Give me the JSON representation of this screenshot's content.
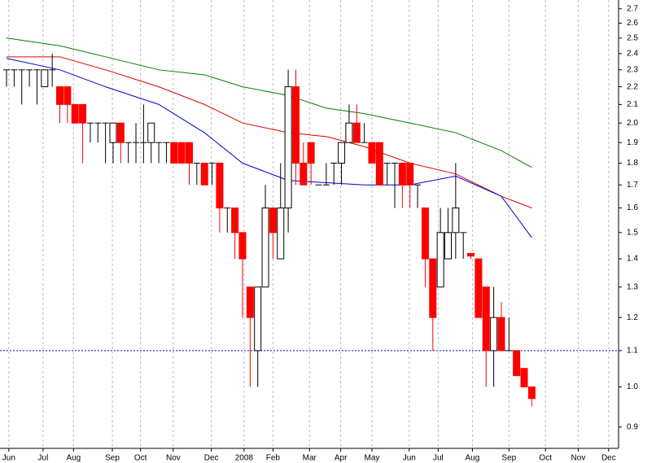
{
  "chart_data": {
    "type": "candlestick",
    "log_scale": true,
    "xlim": [
      -0.86,
      80.4
    ],
    "ylim": [
      0.851,
      2.763
    ],
    "xticks": [
      {
        "value": 0.3,
        "label": "Jun"
      },
      {
        "value": 4.8,
        "label": "Jul"
      },
      {
        "value": 8.8,
        "label": "Aug"
      },
      {
        "value": 13.9,
        "label": "Sep"
      },
      {
        "value": 17.6,
        "label": "Oct"
      },
      {
        "value": 21.9,
        "label": "Nov"
      },
      {
        "value": 26.9,
        "label": "Dec"
      },
      {
        "value": 31.2,
        "label": "2008"
      },
      {
        "value": 35,
        "label": "Feb"
      },
      {
        "value": 39.8,
        "label": "Mar"
      },
      {
        "value": 43.9,
        "label": "Apr"
      },
      {
        "value": 48,
        "label": "May"
      },
      {
        "value": 52.9,
        "label": "Jun"
      },
      {
        "value": 56.7,
        "label": "Jul"
      },
      {
        "value": 61.2,
        "label": "Aug"
      },
      {
        "value": 66,
        "label": "Sep"
      },
      {
        "value": 70.8,
        "label": "Oct"
      },
      {
        "value": 75.1,
        "label": "Nov"
      },
      {
        "value": 79.1,
        "label": "Dec"
      }
    ],
    "yticks": [
      0.9,
      {
        "value": 1,
        "label": "1.0"
      },
      1.1,
      1.2,
      1.3,
      1.4,
      1.5,
      1.6,
      1.7,
      1.8,
      1.9,
      {
        "value": 2,
        "label": "2.0"
      },
      2.1,
      2.2,
      2.3,
      2.4,
      2.5,
      2.6,
      2.7
    ],
    "x_grid": true,
    "up_color": "#ffffff",
    "down_color": "#ff0000",
    "reference_line": {
      "value": 1.1,
      "color": "#0000cc"
    },
    "candles": {
      "x": [
        0,
        1,
        2,
        3,
        4,
        5,
        6,
        7,
        8,
        9,
        10,
        11,
        12,
        13,
        14,
        15,
        16,
        17,
        18,
        19,
        20,
        21,
        22,
        23,
        24,
        25,
        26,
        27,
        28,
        29,
        30,
        31,
        32,
        33,
        34,
        35,
        36,
        37,
        38,
        39,
        40,
        41,
        42,
        43,
        44,
        45,
        46,
        47,
        48,
        49,
        50,
        51,
        52,
        53,
        54,
        55,
        56,
        57,
        58,
        59,
        60,
        61,
        62,
        63,
        64,
        65,
        66,
        67,
        68,
        69
      ],
      "open": [
        2.3,
        2.3,
        2.3,
        2.3,
        2.3,
        2.2,
        2.3,
        2.2,
        2.2,
        2.1,
        2.1,
        2.0,
        2.0,
        2.0,
        1.9,
        2.0,
        1.9,
        1.9,
        1.9,
        1.9,
        1.9,
        1.9,
        1.9,
        1.9,
        1.9,
        1.8,
        1.8,
        1.8,
        1.8,
        1.6,
        1.6,
        1.5,
        1.3,
        1.1,
        1.3,
        1.6,
        1.4,
        1.6,
        2.2,
        1.8,
        1.9,
        1.7,
        1.7,
        1.8,
        1.8,
        1.9,
        2.0,
        1.9,
        1.9,
        1.9,
        1.8,
        1.8,
        1.8,
        1.8,
        1.7,
        1.6,
        1.4,
        1.3,
        1.4,
        1.5,
        1.5,
        1.42,
        1.4,
        1.3,
        1.1,
        1.2,
        1.1,
        1.1,
        1.05,
        1.0
      ],
      "high": [
        2.3,
        2.3,
        2.3,
        2.3,
        2.3,
        2.3,
        2.4,
        2.2,
        2.2,
        2.1,
        2.1,
        2.0,
        2.0,
        2.0,
        2.0,
        2.0,
        1.9,
        2.0,
        2.1,
        2.0,
        1.9,
        1.9,
        1.9,
        1.9,
        1.9,
        1.8,
        1.8,
        1.8,
        1.8,
        1.6,
        1.6,
        1.5,
        1.3,
        1.3,
        1.7,
        1.6,
        1.8,
        2.3,
        2.3,
        1.9,
        1.9,
        1.7,
        1.8,
        1.8,
        1.9,
        2.1,
        2.1,
        2.0,
        1.9,
        1.9,
        1.8,
        1.8,
        1.8,
        1.8,
        1.7,
        1.6,
        1.4,
        1.6,
        1.6,
        1.8,
        1.5,
        1.42,
        1.4,
        1.3,
        1.3,
        1.25,
        1.2,
        1.1,
        1.05,
        1.0
      ],
      "low": [
        2.2,
        2.2,
        2.1,
        2.2,
        2.1,
        2.2,
        2.2,
        2.0,
        2.0,
        2.0,
        1.8,
        1.9,
        1.9,
        1.8,
        1.8,
        1.8,
        1.8,
        1.8,
        1.8,
        1.8,
        1.8,
        1.8,
        1.8,
        1.8,
        1.7,
        1.7,
        1.7,
        1.7,
        1.5,
        1.5,
        1.4,
        1.2,
        1.0,
        1.0,
        1.3,
        1.4,
        1.4,
        1.5,
        1.7,
        1.7,
        1.7,
        1.7,
        1.7,
        1.7,
        1.7,
        1.9,
        1.9,
        1.9,
        1.8,
        1.7,
        1.7,
        1.6,
        1.6,
        1.6,
        1.6,
        1.3,
        1.1,
        1.3,
        1.4,
        1.4,
        1.4,
        1.4,
        1.2,
        1.0,
        1.0,
        1.1,
        1.1,
        1.03,
        1.0,
        0.95
      ],
      "close": [
        2.3,
        2.3,
        2.3,
        2.3,
        2.3,
        2.3,
        2.3,
        2.1,
        2.1,
        2.0,
        2.0,
        2.0,
        2.0,
        2.0,
        2.0,
        1.9,
        1.9,
        1.9,
        1.9,
        2.0,
        1.9,
        1.9,
        1.8,
        1.8,
        1.8,
        1.8,
        1.7,
        1.8,
        1.6,
        1.6,
        1.5,
        1.4,
        1.2,
        1.3,
        1.6,
        1.5,
        1.6,
        2.2,
        1.8,
        1.7,
        1.8,
        1.7,
        1.7,
        1.8,
        1.9,
        2.0,
        1.9,
        1.9,
        1.8,
        1.7,
        1.8,
        1.8,
        1.7,
        1.7,
        1.7,
        1.4,
        1.2,
        1.5,
        1.5,
        1.6,
        1.5,
        1.41,
        1.2,
        1.1,
        1.2,
        1.1,
        1.1,
        1.03,
        1.0,
        0.97
      ]
    },
    "lines": [
      {
        "color": "#008000",
        "x": [
          0,
          7,
          13,
          20,
          26,
          31,
          37,
          42,
          47,
          53,
          59,
          65,
          69
        ],
        "values": [
          2.5,
          2.45,
          2.38,
          2.3,
          2.27,
          2.2,
          2.15,
          2.08,
          2.05,
          2.0,
          1.95,
          1.86,
          1.78
        ]
      },
      {
        "color": "#dd0000",
        "x": [
          0,
          7,
          13,
          20,
          26,
          31,
          37,
          42,
          47,
          53,
          59,
          65,
          69
        ],
        "values": [
          2.38,
          2.38,
          2.3,
          2.2,
          2.1,
          2.0,
          1.95,
          1.93,
          1.88,
          1.8,
          1.75,
          1.65,
          1.6
        ]
      },
      {
        "color": "#0000cc",
        "x": [
          0,
          7,
          13,
          20,
          26,
          31,
          37,
          42,
          47,
          53,
          59,
          65,
          69
        ],
        "values": [
          2.37,
          2.3,
          2.2,
          2.1,
          1.95,
          1.8,
          1.72,
          1.71,
          1.7,
          1.7,
          1.74,
          1.65,
          1.48
        ]
      }
    ]
  }
}
